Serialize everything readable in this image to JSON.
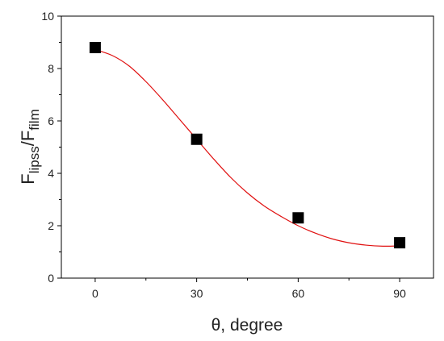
{
  "chart_data": {
    "type": "scatter",
    "xlabel": "θ, degree",
    "ylabel": {
      "base1": "F",
      "sub1": "lipss",
      "sep": "/",
      "base2": "F",
      "sub2": "film"
    },
    "xlim": [
      -10,
      100
    ],
    "ylim": [
      0,
      10
    ],
    "xticks": [
      0,
      30,
      60,
      90
    ],
    "yticks": [
      0,
      2,
      4,
      6,
      8,
      10
    ],
    "grid": false,
    "legend": "none",
    "series": [
      {
        "kind": "points",
        "marker": "square",
        "color": "#000000",
        "x": [
          0,
          30,
          60,
          90
        ],
        "y": [
          8.8,
          5.3,
          2.3,
          1.35
        ]
      },
      {
        "kind": "fit-line",
        "color": "#e01010",
        "x": [
          0,
          5,
          10,
          15,
          20,
          25,
          30,
          35,
          40,
          45,
          50,
          55,
          60,
          65,
          70,
          75,
          80,
          85,
          90
        ],
        "y": [
          8.72,
          8.5,
          8.1,
          7.5,
          6.8,
          6.05,
          5.3,
          4.55,
          3.85,
          3.25,
          2.75,
          2.35,
          2.0,
          1.72,
          1.5,
          1.35,
          1.26,
          1.22,
          1.23
        ]
      }
    ]
  }
}
